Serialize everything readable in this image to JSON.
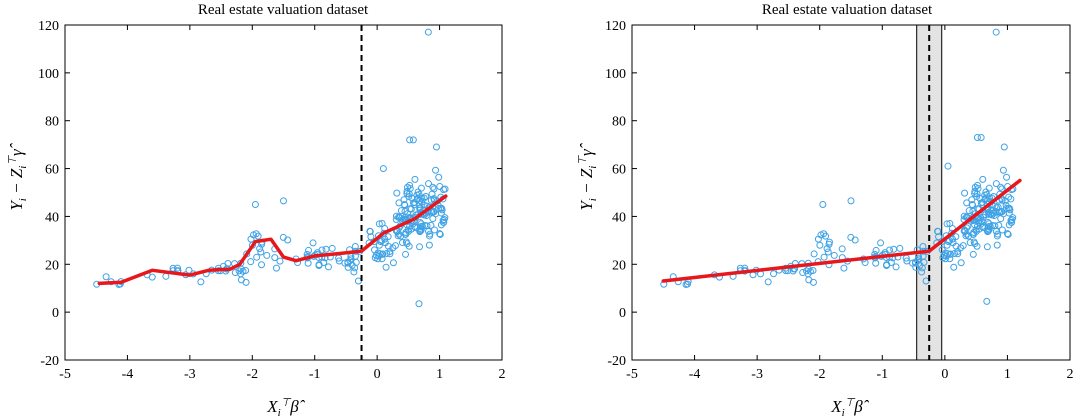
{
  "chart_data": [
    {
      "type": "scatter",
      "title": "Real estate valuation dataset",
      "xlabel": "X_i^⊤ β̂",
      "ylabel": "Y_i − Z_i^⊤ γ̂",
      "xlim": [
        -5,
        2
      ],
      "ylim": [
        -20,
        120
      ],
      "xticks": [
        -5,
        -4,
        -3,
        -2,
        -1,
        0,
        1,
        2
      ],
      "yticks": [
        -20,
        0,
        20,
        40,
        60,
        80,
        100,
        120
      ],
      "grid": false,
      "marker_color": "#3fa2e6",
      "fit_color": "#e8171c",
      "threshold_x": -0.25,
      "scatter_clusters": [
        {
          "x_range": [
            -4.5,
            -4.1
          ],
          "center_y": 12.5,
          "spread": 2,
          "count": 6
        },
        {
          "x_range": [
            -3.7,
            -2.6
          ],
          "center_y": 16,
          "spread": 3,
          "count": 14
        },
        {
          "x_range": [
            -2.6,
            -2.1
          ],
          "center_y": 17,
          "spread": 4,
          "count": 18
        },
        {
          "x_range": [
            -2.1,
            -1.3
          ],
          "center_y": 26,
          "spread": 6,
          "count": 20
        },
        {
          "x_range": [
            -1.3,
            -0.3
          ],
          "center_y": 23,
          "spread": 4,
          "count": 40
        },
        {
          "x_range": [
            -0.3,
            0.3
          ],
          "center_y": 28,
          "spread": 6,
          "count": 35
        },
        {
          "x_range": [
            0.3,
            1.1
          ],
          "center_y": 38,
          "spread": 9,
          "count": 150
        }
      ],
      "outlier_points": [
        {
          "x": 0.82,
          "y": 117
        },
        {
          "x": 0.67,
          "y": 3.5
        },
        {
          "x": 0.52,
          "y": 72
        },
        {
          "x": 0.58,
          "y": 72
        },
        {
          "x": 0.95,
          "y": 69
        },
        {
          "x": 0.1,
          "y": 60
        },
        {
          "x": -1.95,
          "y": 45
        },
        {
          "x": -1.5,
          "y": 46.5
        },
        {
          "x": -0.3,
          "y": 13
        }
      ],
      "fit_line": {
        "x": [
          -4.45,
          -4.1,
          -3.6,
          -3.0,
          -2.7,
          -2.35,
          -2.2,
          -1.95,
          -1.7,
          -1.5,
          -1.3,
          -1.0,
          -0.6,
          -0.25,
          0.1,
          0.6,
          1.1
        ],
        "y": [
          12,
          12.5,
          17.5,
          15.5,
          17.5,
          18,
          20,
          29.5,
          30.5,
          23,
          21.5,
          23.5,
          24.5,
          25.5,
          33,
          39,
          48.5
        ]
      }
    },
    {
      "type": "scatter",
      "title": "Real estate valuation dataset",
      "xlabel": "X_i^⊤ β̂",
      "ylabel": "Y_i − Z_i^⊤ γ̂",
      "xlim": [
        -5,
        2
      ],
      "ylim": [
        -20,
        120
      ],
      "xticks": [
        -5,
        -4,
        -3,
        -2,
        -1,
        0,
        1,
        2
      ],
      "yticks": [
        -20,
        0,
        20,
        40,
        60,
        80,
        100,
        120
      ],
      "grid": false,
      "marker_color": "#3fa2e6",
      "fit_color": "#e8171c",
      "threshold_x": -0.25,
      "band": [
        -0.45,
        -0.05
      ],
      "band_color": "#e3e3e3",
      "scatter_clusters": [
        {
          "x_range": [
            -4.5,
            -4.1
          ],
          "center_y": 12.5,
          "spread": 2,
          "count": 6
        },
        {
          "x_range": [
            -3.7,
            -2.6
          ],
          "center_y": 16,
          "spread": 3,
          "count": 14
        },
        {
          "x_range": [
            -2.6,
            -2.1
          ],
          "center_y": 17,
          "spread": 4,
          "count": 18
        },
        {
          "x_range": [
            -2.1,
            -1.3
          ],
          "center_y": 26,
          "spread": 6,
          "count": 20
        },
        {
          "x_range": [
            -1.3,
            -0.3
          ],
          "center_y": 23,
          "spread": 4,
          "count": 40
        },
        {
          "x_range": [
            -0.3,
            0.3
          ],
          "center_y": 28,
          "spread": 6,
          "count": 35
        },
        {
          "x_range": [
            0.3,
            1.1
          ],
          "center_y": 38,
          "spread": 9,
          "count": 150
        }
      ],
      "outlier_points": [
        {
          "x": 0.82,
          "y": 117
        },
        {
          "x": 0.67,
          "y": 4.5
        },
        {
          "x": 0.52,
          "y": 73
        },
        {
          "x": 0.58,
          "y": 73
        },
        {
          "x": 0.95,
          "y": 69
        },
        {
          "x": 0.05,
          "y": 61
        },
        {
          "x": -1.95,
          "y": 45
        },
        {
          "x": -1.5,
          "y": 46.5
        },
        {
          "x": -0.3,
          "y": 13
        }
      ],
      "fit_line": {
        "x": [
          -4.5,
          -0.25,
          1.2
        ],
        "y": [
          13,
          25.5,
          55
        ]
      }
    }
  ]
}
